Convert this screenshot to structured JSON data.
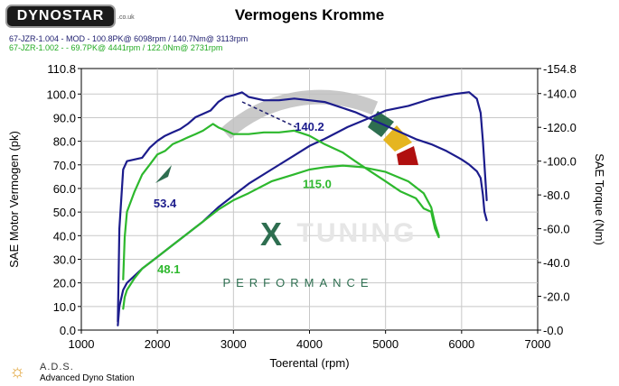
{
  "header": {
    "logo_text": "DYNOSTAR",
    "logo_suffix": ".co.uk",
    "title": "Vermogens Kromme",
    "run1_text": "67-JZR-1.004 - MOD - 100.8PK@ 6098rpm / 140.7Nm@ 3113rpm",
    "run2_text": "67-JZR-1.002 -  - 69.7PK@ 4441rpm / 122.0Nm@ 2731rpm"
  },
  "watermark": {
    "brand_x": "X",
    "brand_word": "TUNING",
    "brand_sub": "PERFORMANCE"
  },
  "footer": {
    "name": "A.D.S.",
    "subtitle": "Advanced Dyno Station"
  },
  "colors": {
    "run1": "#1c1c8c",
    "run2": "#2db82d",
    "grid": "#c8c8c8",
    "watermark_green": "#2e6e50"
  },
  "chart_data": {
    "type": "line",
    "title": "Vermogens Kromme",
    "xlabel": "Toerental (rpm)",
    "ylabel": "SAE Motor Vermogen (pk)",
    "y2label": "SAE Torque (Nm)",
    "xlim": [
      1000,
      7000
    ],
    "ylim": [
      0,
      110.8
    ],
    "y2lim": [
      0,
      154.8
    ],
    "xticks": [
      "1000",
      "2000",
      "3000",
      "4000",
      "5000",
      "6000",
      "7000"
    ],
    "yticks": [
      "0.0",
      "10.0",
      "20.0",
      "30.0",
      "40.0",
      "50.0",
      "60.0",
      "70.0",
      "80.0",
      "90.0",
      "100.0",
      "110.8"
    ],
    "y2ticks": [
      "0.0",
      "20.0",
      "40.0",
      "60.0",
      "80.0",
      "100.0",
      "120.0",
      "140.0",
      "154.8"
    ],
    "grid": true,
    "annotations": [
      {
        "text": "140.2",
        "x": 4000,
        "y": 118,
        "axis": "right",
        "color": "run1"
      },
      {
        "text": "115.0",
        "x": 4100,
        "y": 84,
        "axis": "right",
        "color": "run2"
      },
      {
        "text": "53.4",
        "x": 2100,
        "y": 52,
        "axis": "left",
        "color": "run1"
      },
      {
        "text": "48.1",
        "x": 2150,
        "y": 24,
        "axis": "left",
        "color": "run2"
      }
    ],
    "series": [
      {
        "name": "67-JZR-1.004 - MOD",
        "role": "torque",
        "axis": "right",
        "color": "run1",
        "x": [
          1480,
          1500,
          1550,
          1600,
          1700,
          1800,
          1900,
          2000,
          2100,
          2200,
          2300,
          2400,
          2500,
          2600,
          2700,
          2800,
          2900,
          3000,
          3113,
          3200,
          3400,
          3600,
          3800,
          4000,
          4200,
          4400,
          4600,
          4800,
          5000,
          5200,
          5400,
          5600,
          5800,
          6000,
          6098,
          6200,
          6250,
          6280,
          6300,
          6330
        ],
        "y": [
          5,
          60,
          95,
          100,
          101,
          102,
          108,
          112,
          115,
          117,
          119,
          122,
          126,
          128,
          130,
          135,
          138,
          139,
          140.7,
          138,
          136,
          136,
          137,
          136,
          135,
          132,
          129,
          125,
          121,
          117,
          113,
          110,
          106,
          101,
          98,
          94,
          90,
          80,
          70,
          65
        ]
      },
      {
        "name": "67-JZR-1.004 - MOD",
        "role": "power",
        "axis": "left",
        "color": "run1",
        "x": [
          1480,
          1500,
          1550,
          1600,
          1800,
          2000,
          2200,
          2400,
          2600,
          2800,
          3000,
          3200,
          3500,
          3800,
          4000,
          4200,
          4500,
          4800,
          5000,
          5300,
          5600,
          5900,
          6098,
          6200,
          6250,
          6280,
          6300,
          6330
        ],
        "y": [
          2,
          10,
          17,
          20,
          26,
          31,
          36,
          41,
          46,
          52,
          57,
          62,
          68,
          74,
          78,
          81,
          86,
          90,
          93,
          95,
          98,
          100,
          100.8,
          98,
          92,
          80,
          70,
          55
        ]
      },
      {
        "name": "67-JZR-1.002",
        "role": "torque",
        "axis": "right",
        "color": "run2",
        "x": [
          1550,
          1570,
          1600,
          1700,
          1800,
          1900,
          2000,
          2100,
          2200,
          2300,
          2400,
          2500,
          2600,
          2731,
          2800,
          2900,
          3000,
          3200,
          3400,
          3600,
          3800,
          4000,
          4200,
          4441,
          4600,
          4800,
          5000,
          5200,
          5400,
          5500,
          5600,
          5650,
          5700
        ],
        "y": [
          30,
          55,
          70,
          82,
          92,
          98,
          104,
          106,
          110,
          112,
          114,
          116,
          118,
          122,
          120,
          118,
          116,
          116,
          117,
          117,
          118,
          115,
          110,
          105,
          100,
          94,
          88,
          82,
          78,
          72,
          70,
          60,
          55
        ]
      },
      {
        "name": "67-JZR-1.002",
        "role": "power",
        "axis": "left",
        "color": "run2",
        "x": [
          1550,
          1570,
          1600,
          1700,
          1800,
          2000,
          2200,
          2400,
          2600,
          2800,
          3000,
          3200,
          3500,
          3800,
          4000,
          4200,
          4441,
          4700,
          5000,
          5300,
          5500,
          5600,
          5650,
          5700
        ],
        "y": [
          9,
          14,
          17,
          22,
          26,
          31,
          36,
          41,
          46,
          51,
          55,
          58,
          63,
          66,
          68,
          69,
          69.7,
          69,
          67,
          63,
          58,
          52,
          45,
          40
        ]
      }
    ]
  }
}
